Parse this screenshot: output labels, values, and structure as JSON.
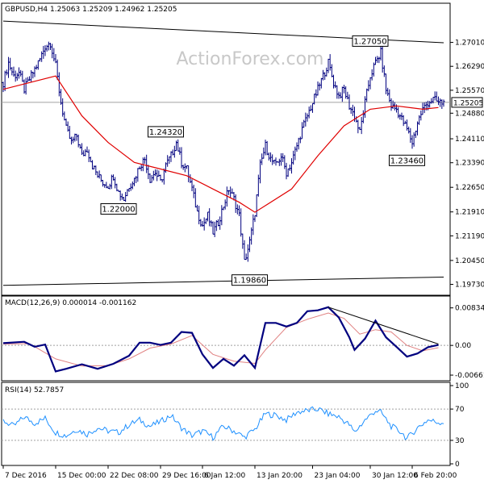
{
  "chart_data": [
    {
      "type": "candlestick",
      "panel": "price",
      "title": "GBPUSD,H4  1.25063 1.25209 1.24962 1.25205",
      "watermark": "ActionForex.com",
      "ylim": [
        1.195,
        1.278
      ],
      "y_ticks": [
        "1.27010",
        "1.26290",
        "1.25570",
        "1.24880",
        "1.24110",
        "1.23390",
        "1.22650",
        "1.21910",
        "1.21190",
        "1.20450",
        "1.19730"
      ],
      "current_price_label": "1.25205",
      "current_price": 1.25205,
      "close_path": [
        [
          0,
          1.258
        ],
        [
          1,
          1.264
        ],
        [
          2,
          1.26
        ],
        [
          3,
          1.261
        ],
        [
          4,
          1.256
        ],
        [
          5,
          1.259
        ],
        [
          6,
          1.262
        ],
        [
          7,
          1.265
        ],
        [
          8,
          1.269
        ],
        [
          9,
          1.27
        ],
        [
          10,
          1.263
        ],
        [
          11,
          1.252
        ],
        [
          12,
          1.244
        ],
        [
          13,
          1.24
        ],
        [
          14,
          1.242
        ],
        [
          15,
          1.236
        ],
        [
          16,
          1.238
        ],
        [
          17,
          1.233
        ],
        [
          18,
          1.23
        ],
        [
          19,
          1.228
        ],
        [
          20,
          1.227
        ],
        [
          21,
          1.23
        ],
        [
          22,
          1.225
        ],
        [
          23,
          1.223
        ],
        [
          24,
          1.227
        ],
        [
          25,
          1.229
        ],
        [
          26,
          1.233
        ],
        [
          27,
          1.235
        ],
        [
          28,
          1.229
        ],
        [
          29,
          1.231
        ],
        [
          30,
          1.228
        ],
        [
          31,
          1.233
        ],
        [
          32,
          1.236
        ],
        [
          33,
          1.24
        ],
        [
          34,
          1.234
        ],
        [
          35,
          1.232
        ],
        [
          36,
          1.226
        ],
        [
          37,
          1.219
        ],
        [
          38,
          1.215
        ],
        [
          39,
          1.218
        ],
        [
          40,
          1.213
        ],
        [
          41,
          1.216
        ],
        [
          42,
          1.221
        ],
        [
          43,
          1.226
        ],
        [
          44,
          1.223
        ],
        [
          45,
          1.218
        ],
        [
          46,
          1.204
        ],
        [
          47,
          1.21
        ],
        [
          48,
          1.219
        ],
        [
          49,
          1.233
        ],
        [
          50,
          1.239
        ],
        [
          51,
          1.235
        ],
        [
          52,
          1.233
        ],
        [
          53,
          1.236
        ],
        [
          54,
          1.231
        ],
        [
          55,
          1.234
        ],
        [
          56,
          1.239
        ],
        [
          57,
          1.244
        ],
        [
          58,
          1.248
        ],
        [
          59,
          1.252
        ],
        [
          60,
          1.256
        ],
        [
          61,
          1.26
        ],
        [
          62,
          1.264
        ],
        [
          63,
          1.258
        ],
        [
          64,
          1.254
        ],
        [
          65,
          1.256
        ],
        [
          66,
          1.251
        ],
        [
          67,
          1.248
        ],
        [
          68,
          1.243
        ],
        [
          69,
          1.252
        ],
        [
          70,
          1.26
        ],
        [
          71,
          1.264
        ],
        [
          72,
          1.267
        ],
        [
          73,
          1.256
        ],
        [
          74,
          1.251
        ],
        [
          75,
          1.25
        ],
        [
          76,
          1.247
        ],
        [
          77,
          1.244
        ],
        [
          78,
          1.24
        ],
        [
          79,
          1.246
        ],
        [
          80,
          1.25
        ],
        [
          81,
          1.252
        ],
        [
          82,
          1.253
        ],
        [
          83,
          1.252
        ]
      ],
      "sma_path": [
        [
          0,
          1.256
        ],
        [
          5,
          1.258
        ],
        [
          10,
          1.26
        ],
        [
          15,
          1.248
        ],
        [
          20,
          1.24
        ],
        [
          25,
          1.234
        ],
        [
          30,
          1.232
        ],
        [
          35,
          1.23
        ],
        [
          40,
          1.226
        ],
        [
          45,
          1.222
        ],
        [
          48,
          1.219
        ],
        [
          50,
          1.221
        ],
        [
          55,
          1.226
        ],
        [
          60,
          1.236
        ],
        [
          65,
          1.245
        ],
        [
          70,
          1.25
        ],
        [
          75,
          1.251
        ],
        [
          80,
          1.25
        ],
        [
          83,
          1.2505
        ]
      ],
      "trendlines": [
        {
          "from": [
            0,
            1.2765
          ],
          "to": [
            84,
            1.27
          ]
        },
        {
          "from": [
            0,
            1.197
          ],
          "to": [
            84,
            1.1995
          ]
        }
      ],
      "annotations": [
        {
          "label": "1.24320",
          "x": 31,
          "value": 1.2432
        },
        {
          "label": "1.22000",
          "x": 22,
          "value": 1.22
        },
        {
          "label": "1.19860",
          "x": 47,
          "value": 1.1986
        },
        {
          "label": "1.27050",
          "x": 70,
          "value": 1.2705
        },
        {
          "label": "1.23460",
          "x": 77,
          "value": 1.2346
        }
      ]
    },
    {
      "type": "line",
      "panel": "macd",
      "title": "MACD(12,26,9) 0.000014 -0.001162",
      "ylim": [
        -0.0075,
        0.009
      ],
      "y_ticks": [
        "0.008341",
        "0.00",
        "-0.00661"
      ],
      "zero_line": 0,
      "series": [
        {
          "name": "MACD",
          "color": "#00007f",
          "values": [
            [
              0,
              0.0005
            ],
            [
              4,
              0.0008
            ],
            [
              6,
              -0.0003
            ],
            [
              8,
              0.0002
            ],
            [
              10,
              -0.0058
            ],
            [
              12,
              -0.0052
            ],
            [
              15,
              -0.0042
            ],
            [
              18,
              -0.0052
            ],
            [
              21,
              -0.0041
            ],
            [
              24,
              -0.0023
            ],
            [
              26,
              0.0006
            ],
            [
              28,
              0.0006
            ],
            [
              30,
              0.0001
            ],
            [
              32,
              0.0006
            ],
            [
              34,
              0.003
            ],
            [
              36,
              0.0028
            ],
            [
              38,
              -0.002
            ],
            [
              40,
              -0.005
            ],
            [
              42,
              -0.003
            ],
            [
              44,
              -0.0045
            ],
            [
              46,
              -0.0022
            ],
            [
              48,
              -0.005
            ],
            [
              50,
              0.005
            ],
            [
              52,
              0.005
            ],
            [
              54,
              0.0042
            ],
            [
              56,
              0.005
            ],
            [
              58,
              0.0076
            ],
            [
              60,
              0.0078
            ],
            [
              62,
              0.0085
            ],
            [
              64,
              0.0062
            ],
            [
              66,
              0.0018
            ],
            [
              67,
              -0.001
            ],
            [
              69,
              0.0015
            ],
            [
              71,
              0.0055
            ],
            [
              73,
              0.0018
            ],
            [
              75,
              -0.0003
            ],
            [
              77,
              -0.0025
            ],
            [
              79,
              -0.0018
            ],
            [
              81,
              -0.0004
            ],
            [
              83,
              0.0001
            ]
          ]
        },
        {
          "name": "Signal",
          "color": "#e08080",
          "values": [
            [
              0,
              0.0003
            ],
            [
              5,
              0.0004
            ],
            [
              10,
              -0.003
            ],
            [
              15,
              -0.0046
            ],
            [
              20,
              -0.0045
            ],
            [
              24,
              -0.003
            ],
            [
              28,
              -0.0006
            ],
            [
              32,
              0.0003
            ],
            [
              36,
              0.0022
            ],
            [
              40,
              -0.002
            ],
            [
              44,
              -0.0035
            ],
            [
              48,
              -0.004
            ],
            [
              50,
              -0.001
            ],
            [
              54,
              0.004
            ],
            [
              58,
              0.0058
            ],
            [
              62,
              0.0072
            ],
            [
              65,
              0.006
            ],
            [
              68,
              0.0025
            ],
            [
              71,
              0.0035
            ],
            [
              74,
              0.003
            ],
            [
              77,
              0.0
            ],
            [
              80,
              -0.0012
            ],
            [
              83,
              -0.0005
            ]
          ]
        }
      ],
      "trendlines": [
        {
          "from": [
            62,
            0.0085
          ],
          "to": [
            83,
            0.0003
          ]
        }
      ]
    },
    {
      "type": "line",
      "panel": "rsi",
      "title": "RSI(14) 52.7857",
      "ylim": [
        0,
        100
      ],
      "y_ticks": [
        "100",
        "70",
        "30",
        "0"
      ],
      "levels": [
        70,
        30
      ],
      "series": [
        {
          "name": "RSI",
          "color": "#1e90ff",
          "values": [
            [
              0,
              55
            ],
            [
              2,
              48
            ],
            [
              4,
              60
            ],
            [
              6,
              52
            ],
            [
              8,
              58
            ],
            [
              10,
              40
            ],
            [
              12,
              36
            ],
            [
              14,
              44
            ],
            [
              16,
              38
            ],
            [
              18,
              46
            ],
            [
              20,
              42
            ],
            [
              22,
              40
            ],
            [
              24,
              50
            ],
            [
              26,
              56
            ],
            [
              28,
              48
            ],
            [
              30,
              54
            ],
            [
              32,
              62
            ],
            [
              34,
              46
            ],
            [
              36,
              36
            ],
            [
              38,
              42
            ],
            [
              40,
              34
            ],
            [
              42,
              48
            ],
            [
              44,
              42
            ],
            [
              46,
              34
            ],
            [
              48,
              44
            ],
            [
              50,
              64
            ],
            [
              52,
              62
            ],
            [
              54,
              56
            ],
            [
              56,
              66
            ],
            [
              58,
              68
            ],
            [
              60,
              70
            ],
            [
              62,
              64
            ],
            [
              64,
              60
            ],
            [
              66,
              50
            ],
            [
              67,
              40
            ],
            [
              69,
              56
            ],
            [
              71,
              68
            ],
            [
              72,
              66
            ],
            [
              74,
              48
            ],
            [
              76,
              40
            ],
            [
              77,
              32
            ],
            [
              79,
              46
            ],
            [
              81,
              56
            ],
            [
              83,
              53
            ]
          ]
        }
      ]
    }
  ],
  "x_axis": {
    "labels": [
      "7 Dec 2016",
      "15 Dec 00:00",
      "22 Dec 08:00",
      "29 Dec 16:00",
      "6 Jan 12:00",
      "13 Jan 20:00",
      "23 Jan 04:00",
      "30 Jan 12:00",
      "6 Feb 20:00"
    ],
    "positions": [
      0,
      10,
      20,
      30,
      38,
      48,
      59,
      70,
      78
    ]
  },
  "colors": {
    "candle": "#00007f",
    "sma": "#e00000",
    "trendline": "#000000",
    "macd": "#00007f",
    "signal": "#e08080",
    "rsi": "#1e90ff",
    "grid_dot": "#a0a0a0",
    "watermark": "#c8c8c8"
  }
}
